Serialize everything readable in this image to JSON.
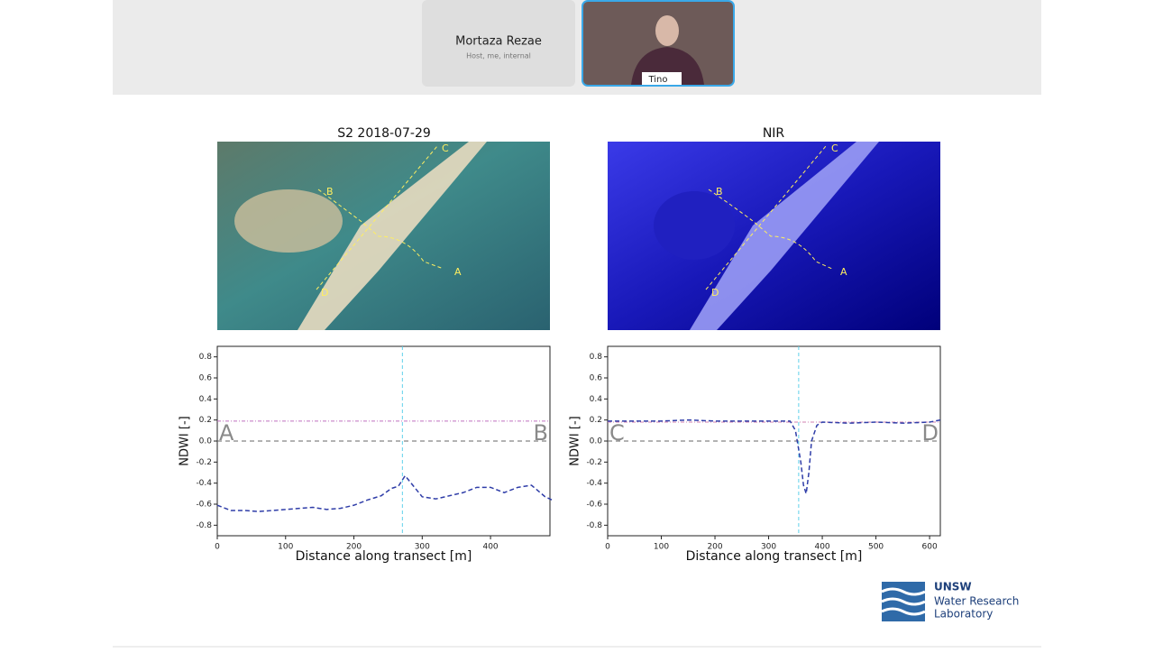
{
  "meeting": {
    "participants": [
      {
        "name": "Mortaza Rezae",
        "subtitle": "Host, me, internal"
      },
      {
        "name": "Tino"
      }
    ]
  },
  "slide": {
    "images": [
      {
        "title": "S2 2018-07-29",
        "points": [
          "A",
          "B",
          "C",
          "D"
        ]
      },
      {
        "title": "NIR",
        "points": [
          "A",
          "B",
          "C",
          "D"
        ]
      }
    ],
    "logo": {
      "brand": "UNSW",
      "line1": "Water Research",
      "line2": "Laboratory"
    }
  },
  "chart_data": [
    {
      "type": "line",
      "xlabel": "Distance along transect [m]",
      "ylabel": "NDWI [-]",
      "corner_labels": [
        "A",
        "B"
      ],
      "x": [
        0,
        20,
        40,
        60,
        80,
        100,
        120,
        140,
        160,
        180,
        200,
        220,
        240,
        255,
        265,
        275,
        290,
        300,
        320,
        340,
        360,
        380,
        400,
        420,
        440,
        460,
        480,
        490
      ],
      "series": [
        {
          "color": "#2f3da8",
          "values": [
            -0.61,
            -0.66,
            -0.66,
            -0.67,
            -0.66,
            -0.65,
            -0.64,
            -0.63,
            -0.65,
            -0.64,
            -0.61,
            -0.56,
            -0.52,
            -0.45,
            -0.43,
            -0.33,
            -0.45,
            -0.53,
            -0.55,
            -0.52,
            -0.49,
            -0.44,
            -0.44,
            -0.49,
            -0.44,
            -0.42,
            -0.53,
            -0.56
          ]
        }
      ],
      "threshold": 0.19,
      "threshold_color": "#c070c0",
      "crossing_x": 271,
      "crossing_color": "#5fd0ea",
      "xlim": [
        0,
        487
      ],
      "xticks": [
        0,
        100,
        200,
        300,
        400
      ],
      "ylim": [
        -0.9,
        0.9
      ],
      "yticks": [
        -0.8,
        -0.6,
        -0.4,
        -0.2,
        {
          "value": 0,
          "label": "0.0"
        },
        0.2,
        0.4,
        0.6,
        0.8
      ]
    },
    {
      "type": "line",
      "xlabel": "Distance along transect [m]",
      "ylabel": "NDWI [-]",
      "corner_labels": [
        "C",
        "D"
      ],
      "x": [
        0,
        50,
        100,
        150,
        200,
        250,
        300,
        340,
        350,
        360,
        365,
        370,
        375,
        380,
        390,
        400,
        450,
        500,
        550,
        600,
        620
      ],
      "series": [
        {
          "color": "#2f3da8",
          "values": [
            0.19,
            0.19,
            0.19,
            0.2,
            0.19,
            0.19,
            0.19,
            0.19,
            0.1,
            -0.2,
            -0.42,
            -0.5,
            -0.3,
            0.0,
            0.15,
            0.18,
            0.17,
            0.18,
            0.17,
            0.18,
            0.2
          ]
        }
      ],
      "threshold": 0.18,
      "threshold_color": "#d080b0",
      "crossing_x": 356,
      "crossing_color": "#5fd0ea",
      "xlim": [
        0,
        620
      ],
      "xticks": [
        0,
        100,
        200,
        300,
        400,
        500,
        600
      ],
      "ylim": [
        -0.9,
        0.9
      ],
      "yticks": [
        -0.8,
        -0.6,
        -0.4,
        -0.2,
        {
          "value": 0,
          "label": "0.0"
        },
        0.2,
        0.4,
        0.6,
        0.8
      ]
    }
  ]
}
